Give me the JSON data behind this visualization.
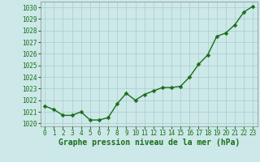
{
  "x": [
    0,
    1,
    2,
    3,
    4,
    5,
    6,
    7,
    8,
    9,
    10,
    11,
    12,
    13,
    14,
    15,
    16,
    17,
    18,
    19,
    20,
    21,
    22,
    23
  ],
  "y": [
    1021.5,
    1021.2,
    1020.7,
    1020.7,
    1021.0,
    1020.3,
    1020.3,
    1020.5,
    1021.7,
    1022.6,
    1022.0,
    1022.5,
    1022.8,
    1023.1,
    1023.1,
    1023.2,
    1024.0,
    1025.1,
    1025.9,
    1027.5,
    1027.8,
    1028.5,
    1029.6,
    1030.1
  ],
  "line_color": "#1a6e1a",
  "marker_color": "#1a6e1a",
  "bg_color": "#cce8e8",
  "grid_color": "#aacccc",
  "xlabel": "Graphe pression niveau de la mer (hPa)",
  "xlabel_color": "#1a6e1a",
  "tick_color": "#1a6e1a",
  "ylim": [
    1019.75,
    1030.5
  ],
  "yticks": [
    1020,
    1021,
    1022,
    1023,
    1024,
    1025,
    1026,
    1027,
    1028,
    1029,
    1030
  ],
  "xticks": [
    0,
    1,
    2,
    3,
    4,
    5,
    6,
    7,
    8,
    9,
    10,
    11,
    12,
    13,
    14,
    15,
    16,
    17,
    18,
    19,
    20,
    21,
    22,
    23
  ],
  "tick_fontsize": 5.5,
  "xlabel_fontsize": 7,
  "linewidth": 1.0,
  "markersize": 2.5
}
